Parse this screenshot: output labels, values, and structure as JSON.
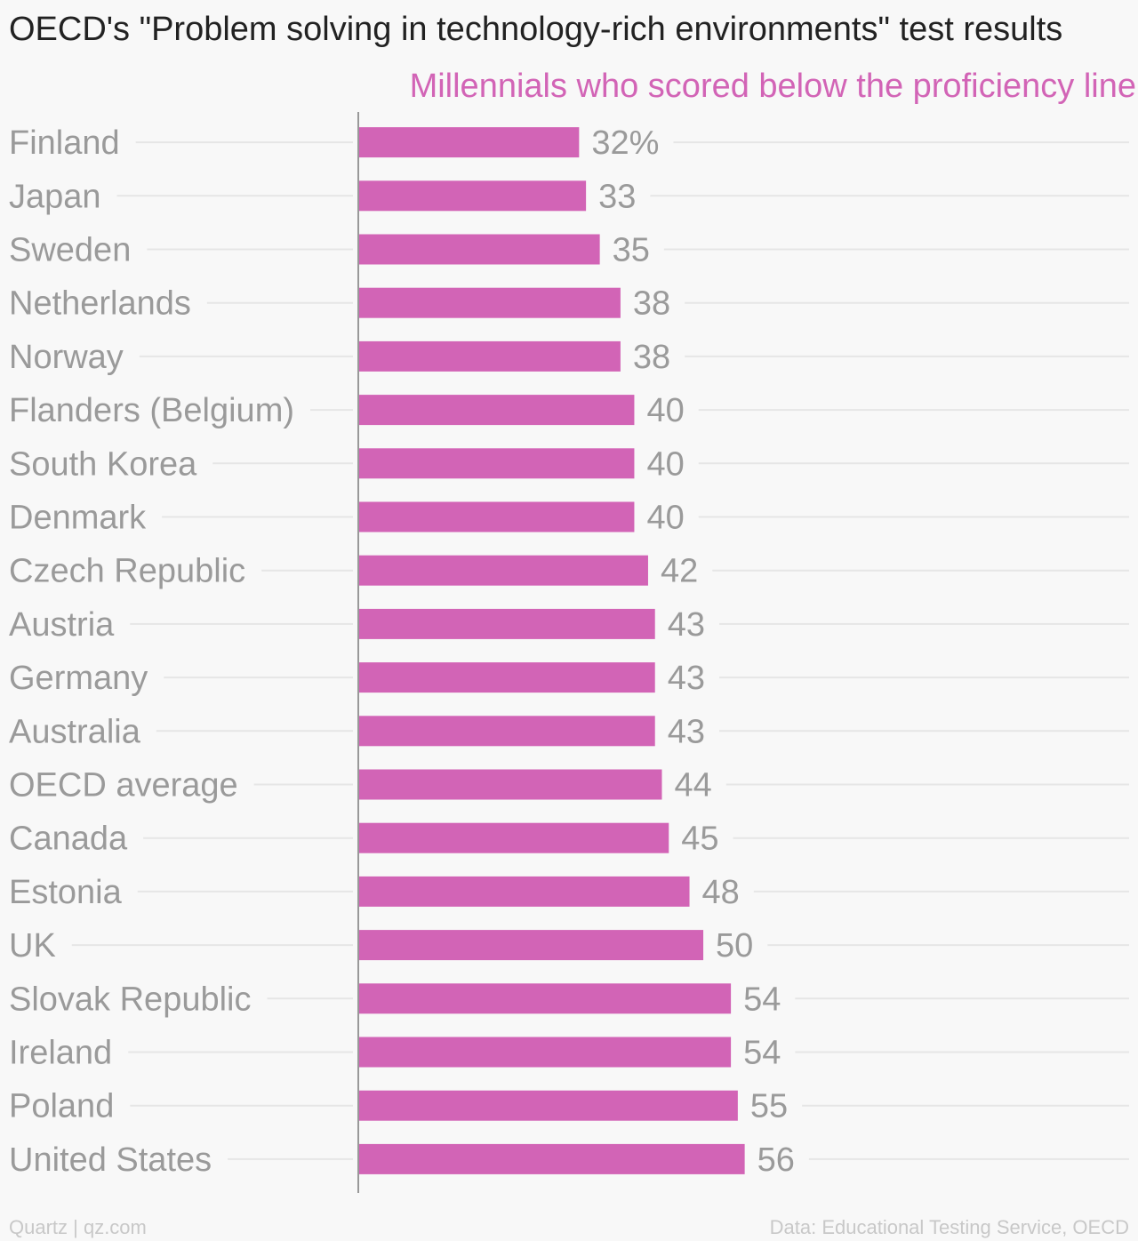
{
  "title": "OECD's \"Problem solving in technology-rich environments\" test results",
  "subtitle": "Millennials who scored below the proficiency line",
  "footer": {
    "source_left": "Quartz | qz.com",
    "source_right": "Data: Educational Testing Service, OECD"
  },
  "colors": {
    "bar": "#d264b6",
    "subtitle": "#d264b6",
    "label": "#9a9a9a",
    "grid": "#e6e6e6",
    "axis": "#999999"
  },
  "chart_data": {
    "type": "bar",
    "orientation": "horizontal",
    "title": "OECD's \"Problem solving in technology-rich environments\" test results",
    "subtitle": "Millennials who scored below the proficiency line",
    "categories": [
      "Finland",
      "Japan",
      "Sweden",
      "Netherlands",
      "Norway",
      "Flanders (Belgium)",
      "South Korea",
      "Denmark",
      "Czech Republic",
      "Austria",
      "Germany",
      "Australia",
      "OECD average",
      "Canada",
      "Estonia",
      "UK",
      "Slovak Republic",
      "Ireland",
      "Poland",
      "United States"
    ],
    "values": [
      32,
      33,
      35,
      38,
      38,
      40,
      40,
      40,
      42,
      43,
      43,
      43,
      44,
      45,
      48,
      50,
      54,
      54,
      55,
      56
    ],
    "value_labels": [
      "32%",
      "33",
      "35",
      "38",
      "38",
      "40",
      "40",
      "40",
      "42",
      "43",
      "43",
      "43",
      "44",
      "45",
      "48",
      "50",
      "54",
      "54",
      "55",
      "56"
    ],
    "xlim": [
      0,
      113
    ],
    "grid": true,
    "legend": "none"
  }
}
